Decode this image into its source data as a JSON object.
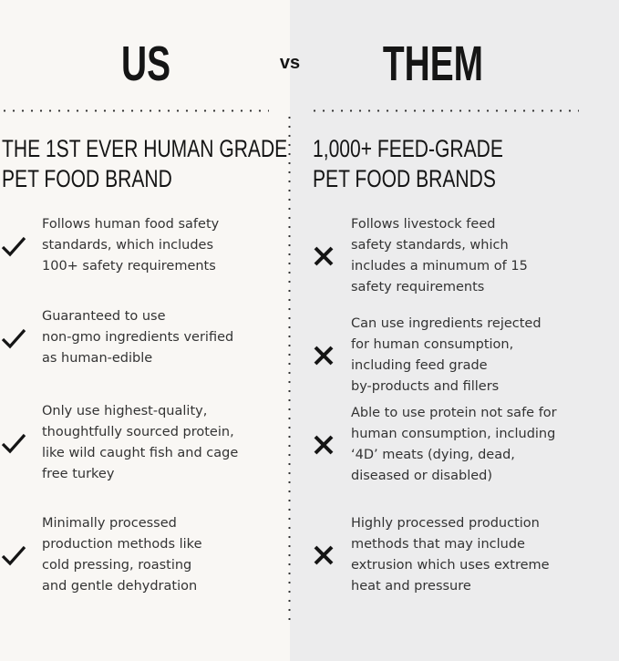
{
  "header": {
    "us": "US",
    "vs": "vs",
    "them": "THEM"
  },
  "us": {
    "title_lines": [
      "THE 1ST EVER HUMAN GRADE",
      "PET FOOD BRAND"
    ],
    "icon": "checkmark-icon",
    "items": [
      {
        "lines": [
          "Follows human food safety",
          "standards, which includes",
          "100+ safety requirements"
        ]
      },
      {
        "lines": [
          "Guaranteed to use",
          "non-gmo ingredients verified",
          "as human-edible"
        ]
      },
      {
        "lines": [
          "Only use highest-quality,",
          "thoughtfully sourced protein,",
          "like wild caught fish and cage",
          "free turkey"
        ]
      },
      {
        "lines": [
          "Minimally processed",
          "production methods like",
          "cold pressing, roasting",
          "and gentle dehydration"
        ]
      }
    ]
  },
  "them": {
    "title_lines": [
      "1,000+ FEED-GRADE",
      "PET FOOD BRANDS"
    ],
    "icon": "x-icon",
    "items": [
      {
        "lines": [
          "Follows livestock feed",
          "safety standards, which",
          "includes a minumum of 15",
          "safety requirements"
        ]
      },
      {
        "lines": [
          "Can use ingredients rejected",
          "for human consumption,",
          "including feed grade",
          "by-products and fillers"
        ]
      },
      {
        "lines": [
          "Able to use protein not safe for",
          "human consumption, including",
          "‘4D’ meats (dying, dead,",
          "diseased or disabled)"
        ]
      },
      {
        "lines": [
          "Highly processed production",
          "methods that may include",
          "extrusion which uses extreme",
          "heat and pressure"
        ]
      }
    ]
  },
  "colors": {
    "left_bg": "#f9f7f4",
    "right_bg": "#ececed",
    "text": "#1a1a1a"
  }
}
